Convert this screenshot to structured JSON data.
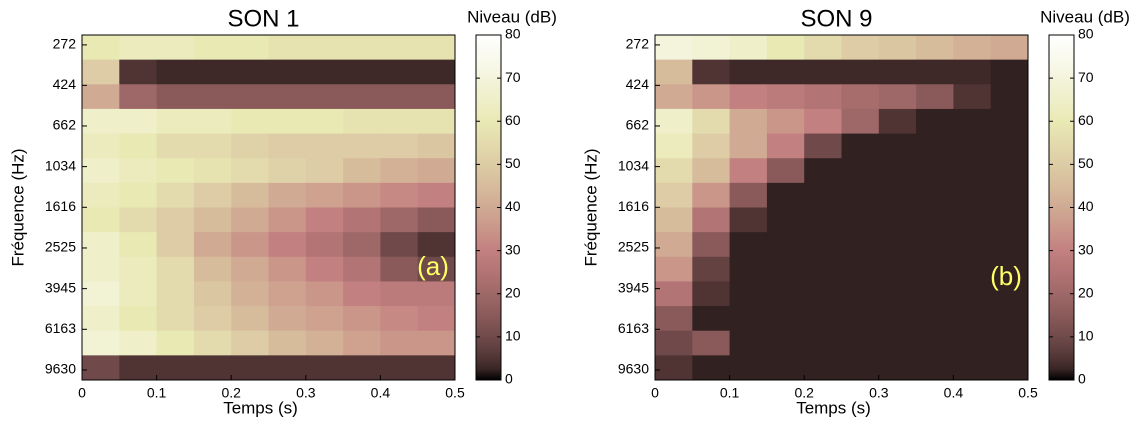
{
  "chart_data": [
    {
      "type": "heatmap",
      "title": "SON 1",
      "xlabel": "Temps (s)",
      "ylabel": "Fréquence (Hz)",
      "colorbar_label": "Niveau (dB)",
      "annotation": "(a)",
      "colormap": "pink",
      "xlim": [
        0,
        0.5
      ],
      "xticks": [
        0,
        0.1,
        0.2,
        0.3,
        0.4,
        0.5
      ],
      "ylim": [
        244,
        10750
      ],
      "ylog": true,
      "yreversed": true,
      "yticks": [
        272,
        424,
        662,
        1034,
        1616,
        2525,
        3945,
        6163,
        9630
      ],
      "clim": [
        0,
        80
      ],
      "cticks": [
        0,
        10,
        20,
        30,
        40,
        50,
        60,
        70,
        80
      ],
      "z": [
        [
          60,
          62,
          62,
          60,
          60,
          58,
          58,
          58,
          58,
          58
        ],
        [
          50,
          5,
          3,
          3,
          3,
          3,
          3,
          3,
          3,
          3
        ],
        [
          40,
          20,
          15,
          15,
          15,
          15,
          15,
          15,
          15,
          15
        ],
        [
          65,
          65,
          62,
          62,
          60,
          60,
          60,
          58,
          58,
          58
        ],
        [
          62,
          60,
          55,
          55,
          52,
          50,
          50,
          50,
          50,
          48
        ],
        [
          65,
          62,
          60,
          58,
          55,
          52,
          50,
          45,
          42,
          40
        ],
        [
          62,
          60,
          55,
          50,
          45,
          40,
          38,
          35,
          32,
          30
        ],
        [
          60,
          55,
          50,
          45,
          40,
          35,
          30,
          25,
          20,
          15
        ],
        [
          65,
          60,
          50,
          40,
          35,
          30,
          25,
          20,
          10,
          5
        ],
        [
          65,
          62,
          55,
          45,
          40,
          35,
          30,
          25,
          15,
          10
        ],
        [
          68,
          62,
          55,
          48,
          42,
          38,
          35,
          30,
          28,
          28
        ],
        [
          65,
          60,
          55,
          50,
          45,
          40,
          38,
          35,
          32,
          30
        ],
        [
          68,
          65,
          60,
          55,
          50,
          45,
          42,
          38,
          35,
          35
        ],
        [
          10,
          5,
          5,
          5,
          5,
          5,
          5,
          5,
          5,
          5
        ]
      ]
    },
    {
      "type": "heatmap",
      "title": "SON 9",
      "xlabel": "Temps (s)",
      "ylabel": "Fréquence (Hz)",
      "colorbar_label": "Niveau (dB)",
      "annotation": "(b)",
      "colormap": "pink",
      "xlim": [
        0,
        0.5
      ],
      "xticks": [
        0,
        0.1,
        0.2,
        0.3,
        0.4,
        0.5
      ],
      "ylim": [
        244,
        10750
      ],
      "ylog": true,
      "yreversed": true,
      "yticks": [
        272,
        424,
        662,
        1034,
        1616,
        2525,
        3945,
        6163,
        9630
      ],
      "clim": [
        0,
        80
      ],
      "cticks": [
        0,
        10,
        20,
        30,
        40,
        50,
        60,
        70,
        80
      ],
      "z": [
        [
          70,
          68,
          65,
          60,
          55,
          50,
          48,
          45,
          42,
          40
        ],
        [
          45,
          5,
          3,
          3,
          3,
          3,
          3,
          3,
          3,
          2
        ],
        [
          40,
          35,
          30,
          28,
          25,
          22,
          20,
          15,
          5,
          2
        ],
        [
          65,
          55,
          40,
          35,
          30,
          20,
          5,
          2,
          2,
          2
        ],
        [
          62,
          50,
          40,
          30,
          10,
          2,
          2,
          2,
          2,
          2
        ],
        [
          55,
          45,
          30,
          15,
          2,
          2,
          2,
          2,
          2,
          2
        ],
        [
          50,
          35,
          15,
          2,
          2,
          2,
          2,
          2,
          2,
          2
        ],
        [
          45,
          25,
          5,
          2,
          2,
          2,
          2,
          2,
          2,
          2
        ],
        [
          40,
          15,
          2,
          2,
          2,
          2,
          2,
          2,
          2,
          2
        ],
        [
          35,
          8,
          2,
          2,
          2,
          2,
          2,
          2,
          2,
          2
        ],
        [
          25,
          5,
          2,
          2,
          2,
          2,
          2,
          2,
          2,
          2
        ],
        [
          15,
          2,
          2,
          2,
          2,
          2,
          2,
          2,
          2,
          2
        ],
        [
          10,
          15,
          2,
          2,
          2,
          2,
          2,
          2,
          2,
          2
        ],
        [
          5,
          2,
          2,
          2,
          2,
          2,
          2,
          2,
          2,
          2
        ]
      ]
    }
  ]
}
